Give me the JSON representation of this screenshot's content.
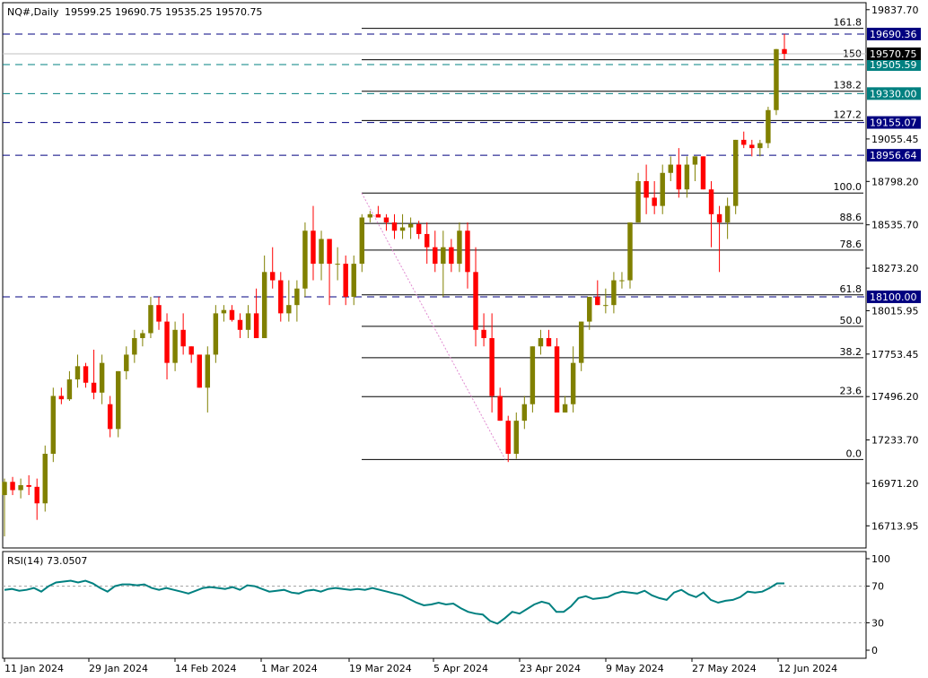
{
  "chart_data": [
    {
      "type": "candlestick",
      "header": {
        "symbol_label": "NQ#,Daily",
        "ohlc_text": "19599.25 19690.75 19535.25 19570.75"
      },
      "colors": {
        "bull": "#808000",
        "bear": "#ff0000",
        "dashed_blue": "#000080",
        "dashed_teal": "#008080",
        "fib_line": "#000000",
        "trend_line": "#e08ad0",
        "current_price_badge": "#000000",
        "teal_badge": "#008080",
        "navy_badge": "#000080"
      },
      "y_axis": {
        "range": [
          16580,
          19880
        ],
        "ticks": [
          "19837.70",
          "19055.45",
          "18798.20",
          "18535.70",
          "18273.20",
          "18015.95",
          "17753.45",
          "17496.20",
          "17233.70",
          "16971.20",
          "16713.95"
        ]
      },
      "x_axis": {
        "ticks": [
          "11 Jan 2024",
          "29 Jan 2024",
          "14 Feb 2024",
          "1 Mar 2024",
          "19 Mar 2024",
          "5 Apr 2024",
          "23 Apr 2024",
          "9 May 2024",
          "27 May 2024",
          "12 Jun 2024"
        ]
      },
      "candles": [
        [
          16900,
          17000,
          16650,
          16980
        ],
        [
          16980,
          17010,
          16900,
          16930
        ],
        [
          16930,
          17000,
          16880,
          16960
        ],
        [
          16960,
          17020,
          16900,
          16950
        ],
        [
          16950,
          17000,
          16750,
          16850
        ],
        [
          16850,
          17200,
          16800,
          17150
        ],
        [
          17150,
          17550,
          17100,
          17500
        ],
        [
          17500,
          17550,
          17450,
          17480
        ],
        [
          17480,
          17650,
          17470,
          17600
        ],
        [
          17600,
          17750,
          17550,
          17680
        ],
        [
          17680,
          17700,
          17550,
          17580
        ],
        [
          17580,
          17780,
          17480,
          17520
        ],
        [
          17520,
          17750,
          17450,
          17700
        ],
        [
          17450,
          17500,
          17250,
          17300
        ],
        [
          17300,
          17650,
          17250,
          17650
        ],
        [
          17650,
          17800,
          17600,
          17750
        ],
        [
          17750,
          17900,
          17700,
          17850
        ],
        [
          17850,
          17900,
          17800,
          17880
        ],
        [
          17880,
          18100,
          17850,
          18050
        ],
        [
          18050,
          18100,
          17900,
          17950
        ],
        [
          17950,
          18000,
          17600,
          17700
        ],
        [
          17700,
          17950,
          17650,
          17900
        ],
        [
          17900,
          18000,
          17750,
          17800
        ],
        [
          17800,
          17800,
          17700,
          17750
        ],
        [
          17750,
          17750,
          17550,
          17550
        ],
        [
          17550,
          17800,
          17400,
          17750
        ],
        [
          17750,
          18050,
          17700,
          18000
        ],
        [
          18000,
          18050,
          17950,
          18020
        ],
        [
          18020,
          18050,
          17950,
          17960
        ],
        [
          17960,
          18000,
          17850,
          17900
        ],
        [
          17900,
          18050,
          17850,
          18000
        ],
        [
          18000,
          18150,
          17850,
          17850
        ],
        [
          17850,
          18350,
          17850,
          18250
        ],
        [
          18250,
          18400,
          18150,
          18200
        ],
        [
          18200,
          18250,
          17950,
          18000
        ],
        [
          18000,
          18200,
          17950,
          18050
        ],
        [
          18050,
          18200,
          17950,
          18150
        ],
        [
          18150,
          18550,
          18100,
          18500
        ],
        [
          18500,
          18650,
          18200,
          18300
        ],
        [
          18300,
          18500,
          18200,
          18450
        ],
        [
          18450,
          18450,
          18050,
          18300
        ],
        [
          18300,
          18400,
          18200,
          18300
        ],
        [
          18300,
          18350,
          18050,
          18100
        ],
        [
          18100,
          18350,
          18050,
          18300
        ],
        [
          18300,
          18600,
          18250,
          18580
        ],
        [
          18580,
          18620,
          18550,
          18600
        ],
        [
          18600,
          18650,
          18580,
          18580
        ],
        [
          18580,
          18600,
          18500,
          18550
        ],
        [
          18550,
          18600,
          18450,
          18500
        ],
        [
          18500,
          18600,
          18450,
          18520
        ],
        [
          18520,
          18580,
          18450,
          18540
        ],
        [
          18540,
          18560,
          18450,
          18480
        ],
        [
          18480,
          18550,
          18300,
          18400
        ],
        [
          18400,
          18500,
          18250,
          18300
        ],
        [
          18300,
          18500,
          18100,
          18400
        ],
        [
          18400,
          18450,
          18250,
          18300
        ],
        [
          18300,
          18550,
          18250,
          18500
        ],
        [
          18500,
          18550,
          18150,
          18250
        ],
        [
          18250,
          18400,
          17800,
          17900
        ],
        [
          17900,
          18000,
          17800,
          17850
        ],
        [
          17850,
          18000,
          17400,
          17500
        ],
        [
          17500,
          17550,
          17350,
          17350
        ],
        [
          17350,
          17380,
          17100,
          17150
        ],
        [
          17150,
          17400,
          17120,
          17350
        ],
        [
          17350,
          17500,
          17300,
          17450
        ],
        [
          17450,
          17800,
          17400,
          17800
        ],
        [
          17800,
          17900,
          17750,
          17850
        ],
        [
          17850,
          17900,
          17800,
          17800
        ],
        [
          17800,
          17850,
          17400,
          17400
        ],
        [
          17400,
          17500,
          17400,
          17450
        ],
        [
          17450,
          17800,
          17400,
          17700
        ],
        [
          17700,
          17950,
          17650,
          17950
        ],
        [
          17950,
          18100,
          17900,
          18100
        ],
        [
          18100,
          18200,
          18050,
          18050
        ],
        [
          18050,
          18150,
          18000,
          18050
        ],
        [
          18050,
          18250,
          18000,
          18200
        ],
        [
          18200,
          18250,
          18150,
          18200
        ],
        [
          18200,
          18550,
          18150,
          18550
        ],
        [
          18550,
          18850,
          18550,
          18800
        ],
        [
          18800,
          18900,
          18600,
          18700
        ],
        [
          18700,
          18800,
          18600,
          18650
        ],
        [
          18650,
          18900,
          18600,
          18850
        ],
        [
          18850,
          18950,
          18800,
          18900
        ],
        [
          18900,
          19000,
          18700,
          18750
        ],
        [
          18750,
          18950,
          18700,
          18900
        ],
        [
          18900,
          18950,
          18800,
          18950
        ],
        [
          18950,
          18950,
          18750,
          18750
        ],
        [
          18750,
          18800,
          18400,
          18600
        ],
        [
          18600,
          18650,
          18250,
          18550
        ],
        [
          18550,
          18700,
          18450,
          18650
        ],
        [
          18650,
          19050,
          18600,
          19050
        ],
        [
          19050,
          19100,
          19000,
          19020
        ],
        [
          19020,
          19050,
          18950,
          19000
        ],
        [
          19000,
          19050,
          18950,
          19030
        ],
        [
          19030,
          19250,
          19000,
          19230
        ],
        [
          19230,
          19600,
          19200,
          19599
        ],
        [
          19599.25,
          19690.75,
          19535.25,
          19570.75
        ]
      ],
      "fib_retracement": {
        "levels": [
          "161.8",
          "150",
          "138.2",
          "127.2",
          "100.0",
          "88.6",
          "78.6",
          "61.8",
          "50.0",
          "38.2",
          "23.6",
          "0.0"
        ],
        "swing_high": 18728,
        "swing_low": 17115
      },
      "horizontal_lines": [
        {
          "price": 19690.36,
          "label": "19690.36",
          "style": "navy"
        },
        {
          "price": 19505.59,
          "label": "19505.59",
          "style": "teal"
        },
        {
          "price": 19330.0,
          "label": "19330.00",
          "style": "teal"
        },
        {
          "price": 19155.07,
          "label": "19155.07",
          "style": "navy"
        },
        {
          "price": 18956.64,
          "label": "18956.64",
          "style": "navy"
        },
        {
          "price": 18100.0,
          "label": "18100.00",
          "style": "navy"
        }
      ],
      "current_price": {
        "price": 19570.75,
        "label": "19570.75"
      }
    },
    {
      "type": "line",
      "title": "RSI(14) 73.0507",
      "y_axis": {
        "range": [
          0,
          100
        ],
        "ticks": [
          "100",
          "70",
          "30",
          "0"
        ],
        "levels": [
          70,
          30
        ]
      },
      "values": [
        66,
        67,
        65,
        66,
        68,
        64,
        70,
        74,
        75,
        76,
        74,
        76,
        73,
        68,
        64,
        70,
        72,
        72,
        71,
        72,
        68,
        66,
        68,
        66,
        64,
        62,
        65,
        68,
        69,
        68,
        67,
        69,
        66,
        71,
        70,
        67,
        64,
        65,
        66,
        63,
        62,
        65,
        66,
        64,
        67,
        68,
        67,
        66,
        67,
        66,
        68,
        66,
        64,
        62,
        60,
        56,
        52,
        49,
        50,
        52,
        50,
        51,
        46,
        42,
        40,
        39,
        32,
        29,
        35,
        42,
        40,
        45,
        50,
        53,
        51,
        42,
        42,
        48,
        57,
        59,
        56,
        57,
        58,
        62,
        64,
        63,
        62,
        65,
        60,
        57,
        55,
        63,
        66,
        61,
        58,
        63,
        55,
        52,
        54,
        55,
        58,
        64,
        63,
        64,
        68,
        73,
        73.05
      ]
    }
  ]
}
